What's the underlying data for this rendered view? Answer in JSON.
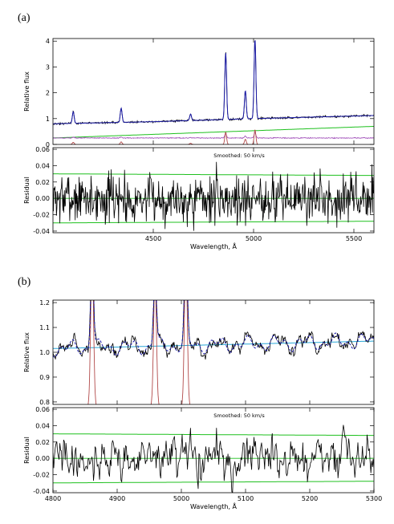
{
  "panel_labels": [
    "(a)",
    "(b)"
  ],
  "colors": {
    "observed": "#000000",
    "model": "#1a1aa8",
    "emission_lines": "#b24a4a",
    "continuum_a": "#1fc01f",
    "residual_template": "#9b45b5",
    "continuum_b": "#2aa7d8",
    "residual_limits": "#1fc01f"
  },
  "chart_data": [
    {
      "id": "a-top",
      "type": "line",
      "xlabel": "",
      "ylabel": "Relative flux",
      "xlim": [
        4000,
        5600
      ],
      "ylim": [
        0,
        4.1
      ],
      "xticks": [
        4500,
        5000,
        5500
      ],
      "yticks": [
        0,
        1,
        2,
        3,
        4
      ],
      "continuum_level": [
        [
          4000,
          0.8
        ],
        [
          4500,
          0.88
        ],
        [
          5000,
          1.0
        ],
        [
          5600,
          1.12
        ]
      ],
      "emission_lines": [
        {
          "wavelength": 4101,
          "peak": 1.45
        },
        {
          "wavelength": 4340,
          "peak": 1.55
        },
        {
          "wavelength": 4686,
          "peak": 1.25
        },
        {
          "wavelength": 4861,
          "peak": 3.6
        },
        {
          "wavelength": 4959,
          "peak": 2.1
        },
        {
          "wavelength": 5007,
          "peak": 4.1
        }
      ],
      "green_line": [
        [
          4000,
          0.25
        ],
        [
          5600,
          0.7
        ]
      ],
      "purple_line_level": 0.25
    },
    {
      "id": "a-bottom",
      "type": "line",
      "xlabel": "Wavelength, Å",
      "ylabel": "Residual",
      "xlim": [
        4000,
        5600
      ],
      "ylim": [
        -0.042,
        0.062
      ],
      "xticks": [
        4500,
        5000,
        5500
      ],
      "yticks": [
        -0.04,
        -0.02,
        0.0,
        0.02,
        0.04,
        0.06
      ],
      "annotation": "Smoothed: 50 km/s",
      "limit_upper": [
        [
          4000,
          0.03
        ],
        [
          5600,
          0.028
        ]
      ],
      "limit_lower": [
        [
          4000,
          -0.03
        ],
        [
          5600,
          -0.028
        ]
      ],
      "zero_line": 0.0,
      "noise_amplitude": 0.03
    },
    {
      "id": "b-top",
      "type": "line",
      "xlabel": "",
      "ylabel": "Relative flux",
      "xlim": [
        4800,
        5300
      ],
      "ylim": [
        0.79,
        1.21
      ],
      "xticks": [
        4800,
        4900,
        5000,
        5100,
        5200,
        5300
      ],
      "yticks": [
        0.8,
        0.9,
        1.0,
        1.1,
        1.2
      ],
      "continuum": [
        [
          4800,
          1.015
        ],
        [
          5300,
          1.045
        ]
      ],
      "emission_lines": [
        {
          "wavelength": 4861,
          "peak": 1.4
        },
        {
          "wavelength": 4959,
          "peak": 1.3
        },
        {
          "wavelength": 5007,
          "peak": 1.4
        }
      ]
    },
    {
      "id": "b-bottom",
      "type": "line",
      "xlabel": "Wavelength, Å",
      "ylabel": "Residual",
      "xlim": [
        4800,
        5300
      ],
      "ylim": [
        -0.042,
        0.062
      ],
      "xticks": [
        4800,
        4900,
        5000,
        5100,
        5200,
        5300
      ],
      "yticks": [
        -0.04,
        -0.02,
        0.0,
        0.02,
        0.04,
        0.06
      ],
      "annotation": "Smoothed: 50 km/s",
      "limit_upper": [
        [
          4800,
          0.03
        ],
        [
          5300,
          0.028
        ]
      ],
      "limit_lower": [
        [
          4800,
          -0.03
        ],
        [
          5300,
          -0.028
        ]
      ],
      "zero_line": 0.0,
      "noise_amplitude": 0.03
    }
  ]
}
